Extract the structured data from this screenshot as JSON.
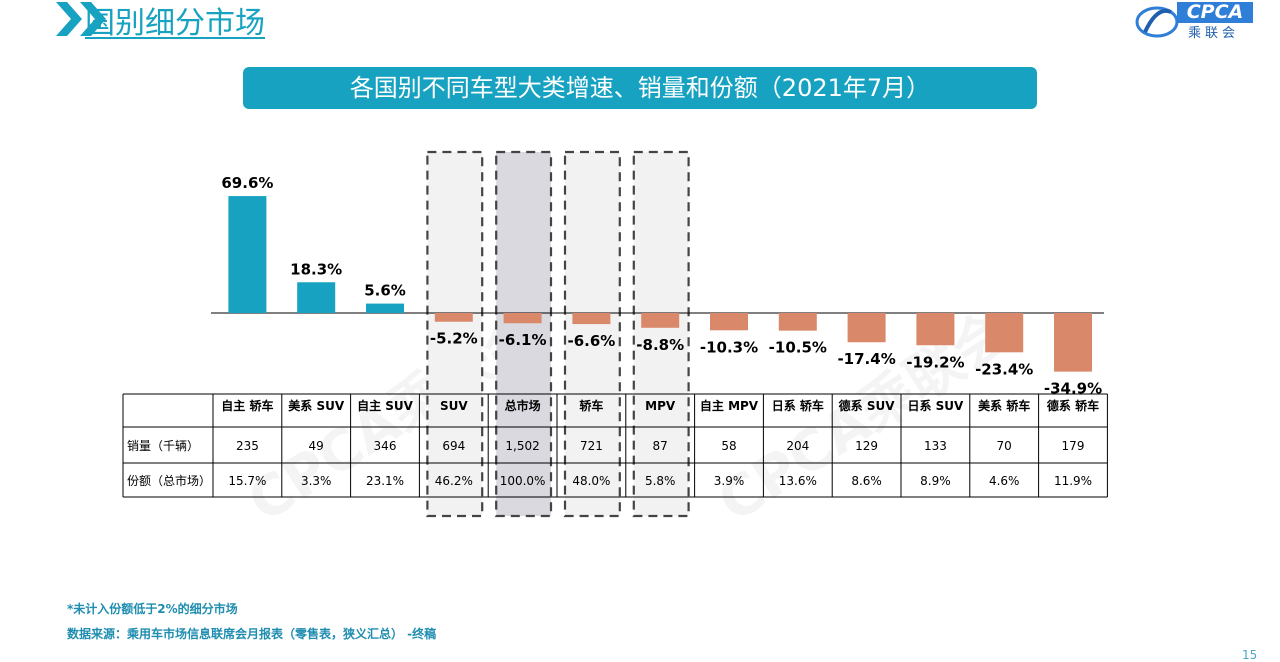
{
  "header": {
    "title": "国别细分市场"
  },
  "logo": {
    "text": "CPCA",
    "subtitle": "乘联会"
  },
  "banner": {
    "title": "各国别不同车型大类增速、销量和份额（2021年7月）"
  },
  "watermark": {
    "text": "CPCA乘联会"
  },
  "chart_data": {
    "type": "bar",
    "categories": [
      "自主 轿车",
      "美系 SUV",
      "自主 SUV",
      "SUV",
      "总市场",
      "轿车",
      "MPV",
      "自主 MPV",
      "日系 轿车",
      "德系 SUV",
      "日系 SUV",
      "美系 轿车",
      "德系 轿车"
    ],
    "values": [
      69.6,
      18.3,
      5.6,
      -5.2,
      -6.1,
      -6.6,
      -8.8,
      -10.3,
      -10.5,
      -17.4,
      -19.2,
      -23.4,
      -34.9
    ],
    "value_labels": [
      "69.6%",
      "18.3%",
      "5.6%",
      "-5.2%",
      "-6.1%",
      "-6.6%",
      "-8.8%",
      "-10.3%",
      "-10.5%",
      "-17.4%",
      "-19.2%",
      "-23.4%",
      "-34.9%"
    ],
    "unit": "%",
    "highlighted": [
      "SUV",
      "总市场",
      "轿车",
      "MPV"
    ],
    "colors": {
      "positive": "#17a2c1",
      "negative": "#d9886a",
      "highlight_bg": "#f2f2f2",
      "total_bg": "#d9d9df"
    },
    "table": {
      "rows": [
        {
          "label": "销量（千辆）",
          "values": [
            "235",
            "49",
            "346",
            "694",
            "1,502",
            "721",
            "87",
            "58",
            "204",
            "129",
            "133",
            "70",
            "179"
          ]
        },
        {
          "label": "份额（总市场）",
          "values": [
            "15.7%",
            "3.3%",
            "23.1%",
            "46.2%",
            "100.0%",
            "48.0%",
            "5.8%",
            "3.9%",
            "13.6%",
            "8.6%",
            "8.9%",
            "4.6%",
            "11.9%"
          ]
        }
      ]
    }
  },
  "notes": [
    "*未计入份额低于2%的细分市场",
    "数据来源：乘用车市场信息联席会月报表（零售表，狭义汇总）  -终稿"
  ],
  "page_number": "15"
}
